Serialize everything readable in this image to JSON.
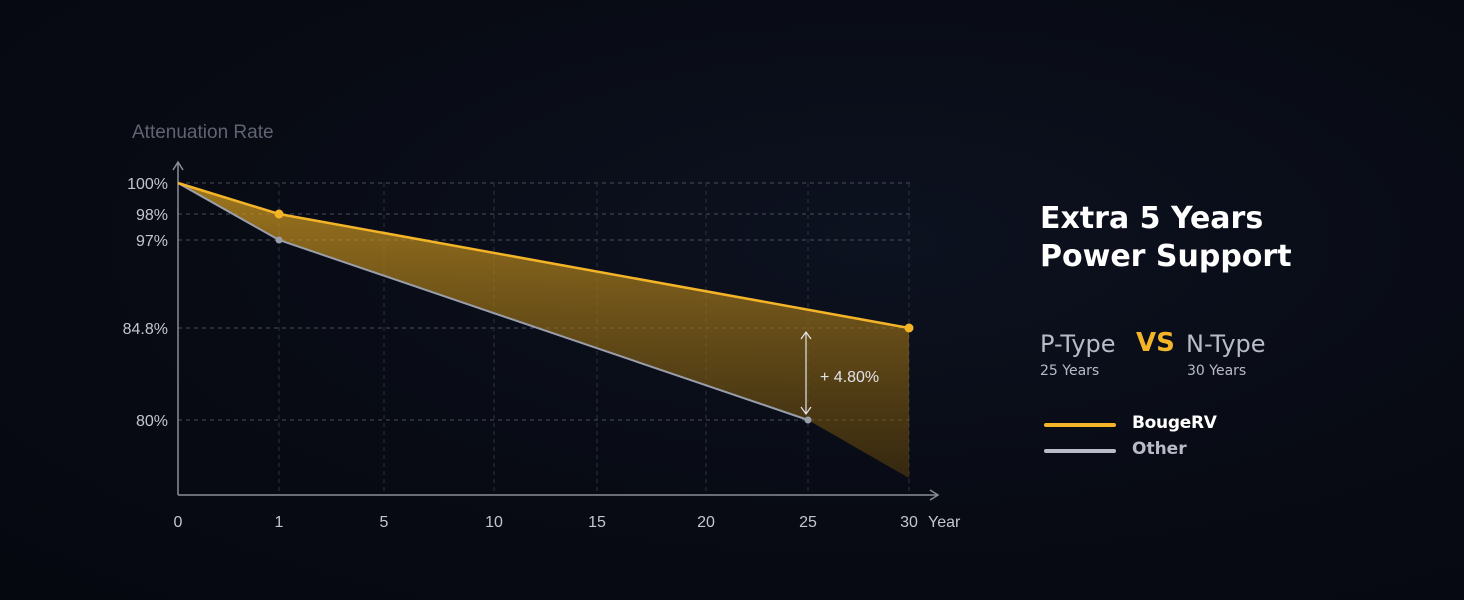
{
  "chart_data": {
    "type": "line",
    "ylabel": "Attenuation Rate",
    "xlabel": "Year",
    "x_ticks": [
      "0",
      "1",
      "5",
      "10",
      "15",
      "20",
      "25",
      "30"
    ],
    "y_ticks": [
      "100%",
      "98%",
      "97%",
      "84.8%",
      "80%"
    ],
    "series": [
      {
        "name": "BougeRV",
        "color": "#f4b428",
        "points": [
          [
            0,
            100
          ],
          [
            1,
            98
          ],
          [
            30,
            84.8
          ]
        ],
        "markers": [
          [
            1,
            98
          ],
          [
            30,
            84.8
          ]
        ]
      },
      {
        "name": "Other",
        "color": "#9a9eaa",
        "points": [
          [
            0,
            100
          ],
          [
            1,
            97
          ],
          [
            25,
            80
          ],
          [
            30,
            76.4
          ]
        ],
        "markers": [
          [
            1,
            97
          ],
          [
            25,
            80
          ]
        ]
      }
    ],
    "annotation": {
      "text": "+ 4.80%",
      "x": 25,
      "from": 80,
      "to": 84.8
    },
    "grid": true
  },
  "panel": {
    "headline_line1": "Extra 5 Years",
    "headline_line2": "Power Support",
    "ptype": "P-Type",
    "ptype_years": "25 Years",
    "vs": "VS",
    "ntype": "N-Type",
    "ntype_years": "30 Years"
  },
  "legend": {
    "brand": "BougeRV",
    "other": "Other",
    "brand_color": "#f4b428",
    "other_color": "#b9bcc8"
  }
}
